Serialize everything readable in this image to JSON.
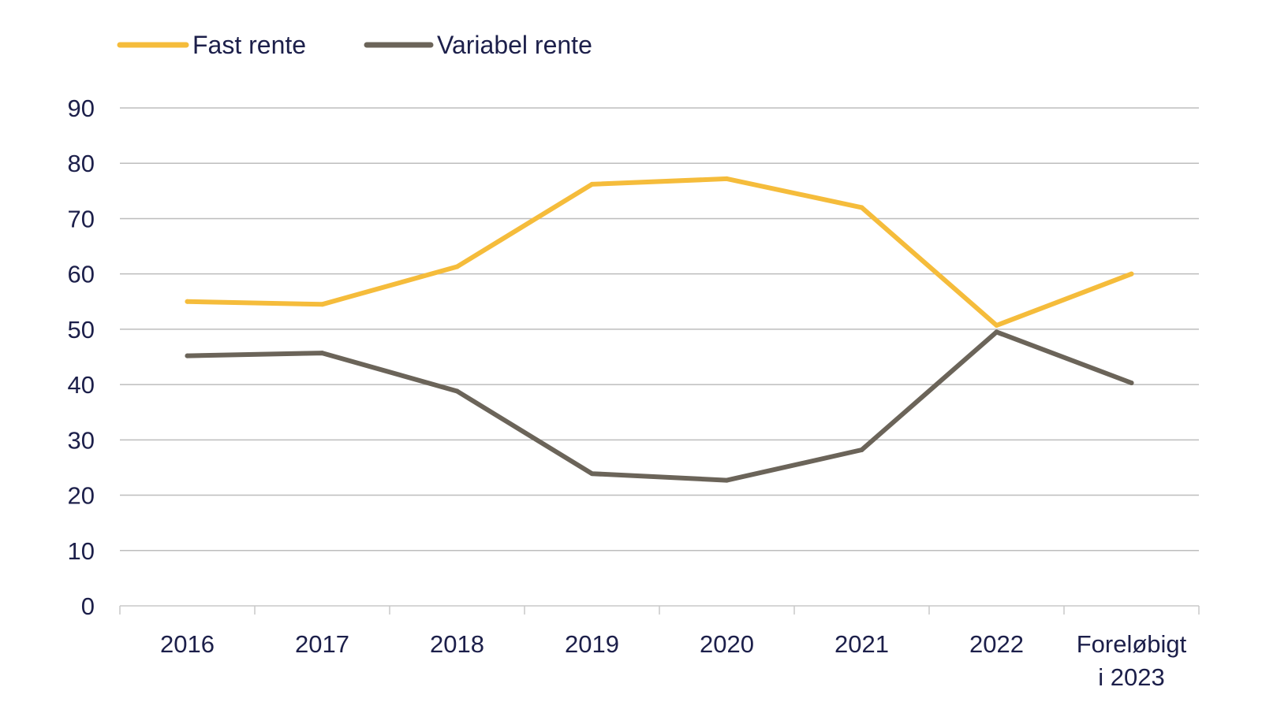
{
  "colors": {
    "fast_rente": "#F5BC3B",
    "variabel_rente": "#6B6459",
    "text": "#1C1F4A",
    "grid": "#BDBDBD",
    "axis": "#C9C9C9"
  },
  "chart_data": {
    "type": "line",
    "title": "",
    "xlabel": "",
    "ylabel": "",
    "categories": [
      [
        "2016"
      ],
      [
        "2017"
      ],
      [
        "2018"
      ],
      [
        "2019"
      ],
      [
        "2020"
      ],
      [
        "2021"
      ],
      [
        "2022"
      ],
      [
        "Foreløbigt",
        "i 2023"
      ]
    ],
    "ylim": [
      0,
      90
    ],
    "yticks": [
      0,
      10,
      20,
      30,
      40,
      50,
      60,
      70,
      80,
      90
    ],
    "grid": true,
    "legend": "top-left",
    "series": [
      {
        "name": "Fast rente",
        "color_key": "fast_rente",
        "values": [
          55,
          54.5,
          61.3,
          76.2,
          77.2,
          72,
          50.7,
          60
        ]
      },
      {
        "name": "Variabel rente",
        "color_key": "variabel_rente",
        "values": [
          45.2,
          45.7,
          38.8,
          23.9,
          22.7,
          28.2,
          49.5,
          40.3
        ]
      }
    ]
  }
}
